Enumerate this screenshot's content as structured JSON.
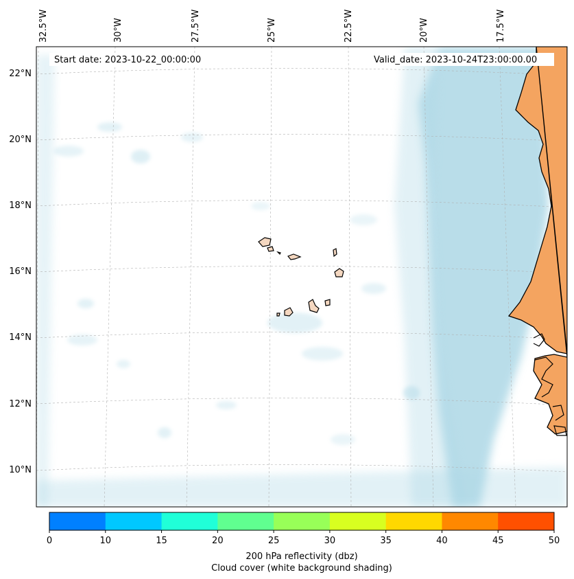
{
  "map": {
    "start_date": "Start date: 2023-10-22_00:00:00",
    "valid_date": "Valid_date: 2023-10-24T23:00:00.00",
    "lon_labels": [
      "32.5°W",
      "30°W",
      "27.5°W",
      "25°W",
      "22.5°W",
      "20°W",
      "17.5°W"
    ],
    "lat_labels": [
      "22°N",
      "20°N",
      "18°N",
      "16°N",
      "14°N",
      "12°N",
      "10°N"
    ],
    "colors": {
      "cloud": "#add8e6",
      "land": "#f4a460",
      "coast": "#000000",
      "grid": "#b0b0b0"
    },
    "icons": [
      "island-shape",
      "coastline-shape"
    ]
  },
  "colorbar": {
    "ticks": [
      "0",
      "10",
      "15",
      "20",
      "25",
      "30",
      "35",
      "40",
      "45",
      "50"
    ],
    "colors": [
      "#0080ff",
      "#00c8ff",
      "#20ffd8",
      "#60ff90",
      "#98ff58",
      "#d8ff20",
      "#ffd800",
      "#ff8800",
      "#ff5000"
    ],
    "label_line1": "200 hPa reflectivity (dbz)",
    "label_line2": "Cloud cover (white background shading)"
  }
}
